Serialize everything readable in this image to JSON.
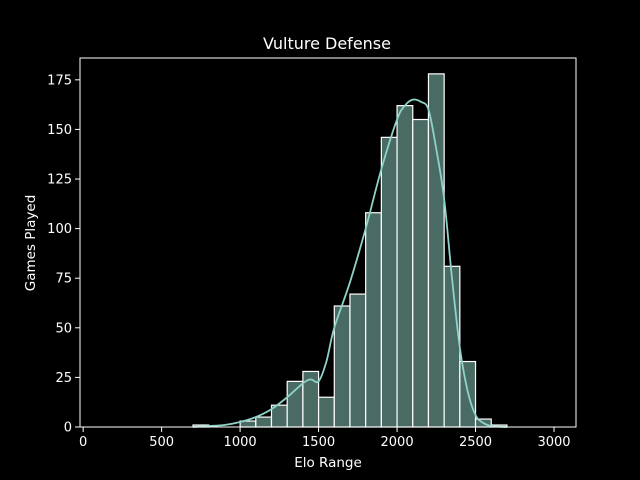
{
  "chart_data": {
    "type": "bar",
    "title": "Vulture Defense",
    "xlabel": "Elo Range",
    "ylabel": "Games Played",
    "xlim": [
      -20,
      3140
    ],
    "ylim": [
      0,
      186
    ],
    "xticks": [
      0,
      500,
      1000,
      1500,
      2000,
      2500,
      3000
    ],
    "yticks": [
      0,
      25,
      50,
      75,
      100,
      125,
      150,
      175
    ],
    "grid": false,
    "bin_width": 100,
    "bins": [
      {
        "x0": 100,
        "value": 0
      },
      {
        "x0": 200,
        "value": 0
      },
      {
        "x0": 300,
        "value": 0
      },
      {
        "x0": 400,
        "value": 0
      },
      {
        "x0": 500,
        "value": 0
      },
      {
        "x0": 600,
        "value": 0
      },
      {
        "x0": 700,
        "value": 1
      },
      {
        "x0": 800,
        "value": 0
      },
      {
        "x0": 900,
        "value": 0
      },
      {
        "x0": 1000,
        "value": 3
      },
      {
        "x0": 1100,
        "value": 5
      },
      {
        "x0": 1200,
        "value": 11
      },
      {
        "x0": 1300,
        "value": 23
      },
      {
        "x0": 1400,
        "value": 28
      },
      {
        "x0": 1500,
        "value": 15
      },
      {
        "x0": 1600,
        "value": 61
      },
      {
        "x0": 1700,
        "value": 67
      },
      {
        "x0": 1800,
        "value": 108
      },
      {
        "x0": 1900,
        "value": 146
      },
      {
        "x0": 2000,
        "value": 162
      },
      {
        "x0": 2100,
        "value": 155
      },
      {
        "x0": 2200,
        "value": 178
      },
      {
        "x0": 2300,
        "value": 81
      },
      {
        "x0": 2400,
        "value": 33
      },
      {
        "x0": 2500,
        "value": 4
      },
      {
        "x0": 2600,
        "value": 1
      },
      {
        "x0": 2700,
        "value": 0
      },
      {
        "x0": 2800,
        "value": 0
      },
      {
        "x0": 2900,
        "value": 0
      }
    ],
    "kde": {
      "x": [
        700,
        800,
        900,
        1000,
        1100,
        1200,
        1300,
        1400,
        1450,
        1500,
        1550,
        1600,
        1700,
        1800,
        1900,
        2000,
        2050,
        2100,
        2150,
        2200,
        2250,
        2300,
        2350,
        2400,
        2450,
        2500,
        2550,
        2600,
        2650,
        2700
      ],
      "y": [
        0,
        0.5,
        1,
        2.5,
        5,
        9,
        15,
        22,
        24,
        23,
        33,
        50,
        73,
        100,
        130,
        155,
        162,
        165,
        164,
        160,
        140,
        115,
        75,
        40,
        18,
        6,
        2,
        0.5,
        0.2,
        0
      ]
    },
    "colors": {
      "bar_fill": "#4a6b64",
      "bar_edge": "#ffffff",
      "kde_line": "#8dd3c7",
      "background": "#000000",
      "text": "#ffffff"
    }
  }
}
